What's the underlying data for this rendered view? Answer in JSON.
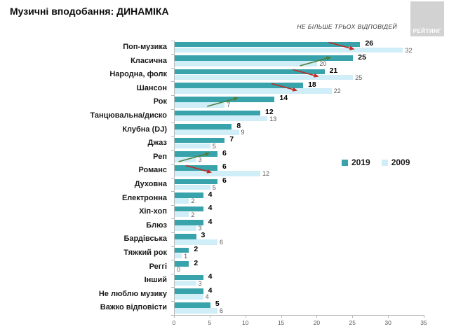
{
  "header": {
    "title": "Музичні вподобання: ДИНАМІКА",
    "note": "НЕ БІЛЬШЕ ТРЬОХ ВІДПОВІДЕЙ",
    "logo_text": "РЕЙТИНГ"
  },
  "chart_data": {
    "type": "bar",
    "orientation": "horizontal",
    "title": "Музичні вподобання: ДИНАМІКА",
    "categories": [
      "Поп-музика",
      "Класична",
      "Народна, фолк",
      "Шансон",
      "Рок",
      "Танцювальна/диско",
      "Клубна (DJ)",
      "Джаз",
      "Реп",
      "Романс",
      "Духовна",
      "Електронна",
      "Хіп-хоп",
      "Блюз",
      "Бардівська",
      "Тяжкий рок",
      "Реггі",
      "Інший",
      "Не люблю музику",
      "Важко відповісти"
    ],
    "series": [
      {
        "name": "2019",
        "color": "#38a3ab",
        "values": [
          26,
          25,
          21,
          18,
          14,
          12,
          8,
          7,
          6,
          6,
          6,
          4,
          4,
          4,
          3,
          2,
          2,
          4,
          4,
          5
        ]
      },
      {
        "name": "2009",
        "color": "#cfeef8",
        "values": [
          32,
          20,
          25,
          22,
          7,
          13,
          9,
          5,
          3,
          12,
          5,
          2,
          2,
          3,
          6,
          1,
          0,
          3,
          4,
          6
        ]
      }
    ],
    "trends": [
      "down",
      "up",
      "down",
      "down",
      "up",
      null,
      null,
      null,
      "up",
      "down",
      null,
      null,
      null,
      null,
      null,
      null,
      null,
      null,
      null,
      null
    ],
    "trend_colors": {
      "up": "#4e7d3a",
      "down": "#c02a21"
    },
    "xlim": [
      0,
      35
    ],
    "xticks": [
      0,
      5,
      10,
      15,
      20,
      25,
      30,
      35
    ],
    "grid": false,
    "legend_position": "middle-right"
  }
}
